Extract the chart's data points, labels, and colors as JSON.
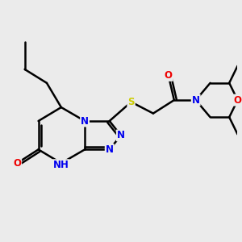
{
  "bg_color": "#ebebeb",
  "atom_colors": {
    "C": "#000000",
    "N": "#0000ee",
    "O": "#ee0000",
    "S": "#cccc00",
    "H": "#0000ee"
  },
  "bond_color": "#000000",
  "bond_width": 1.8,
  "font_size": 8.5,
  "fig_size": [
    3.0,
    3.0
  ],
  "dpi": 100
}
